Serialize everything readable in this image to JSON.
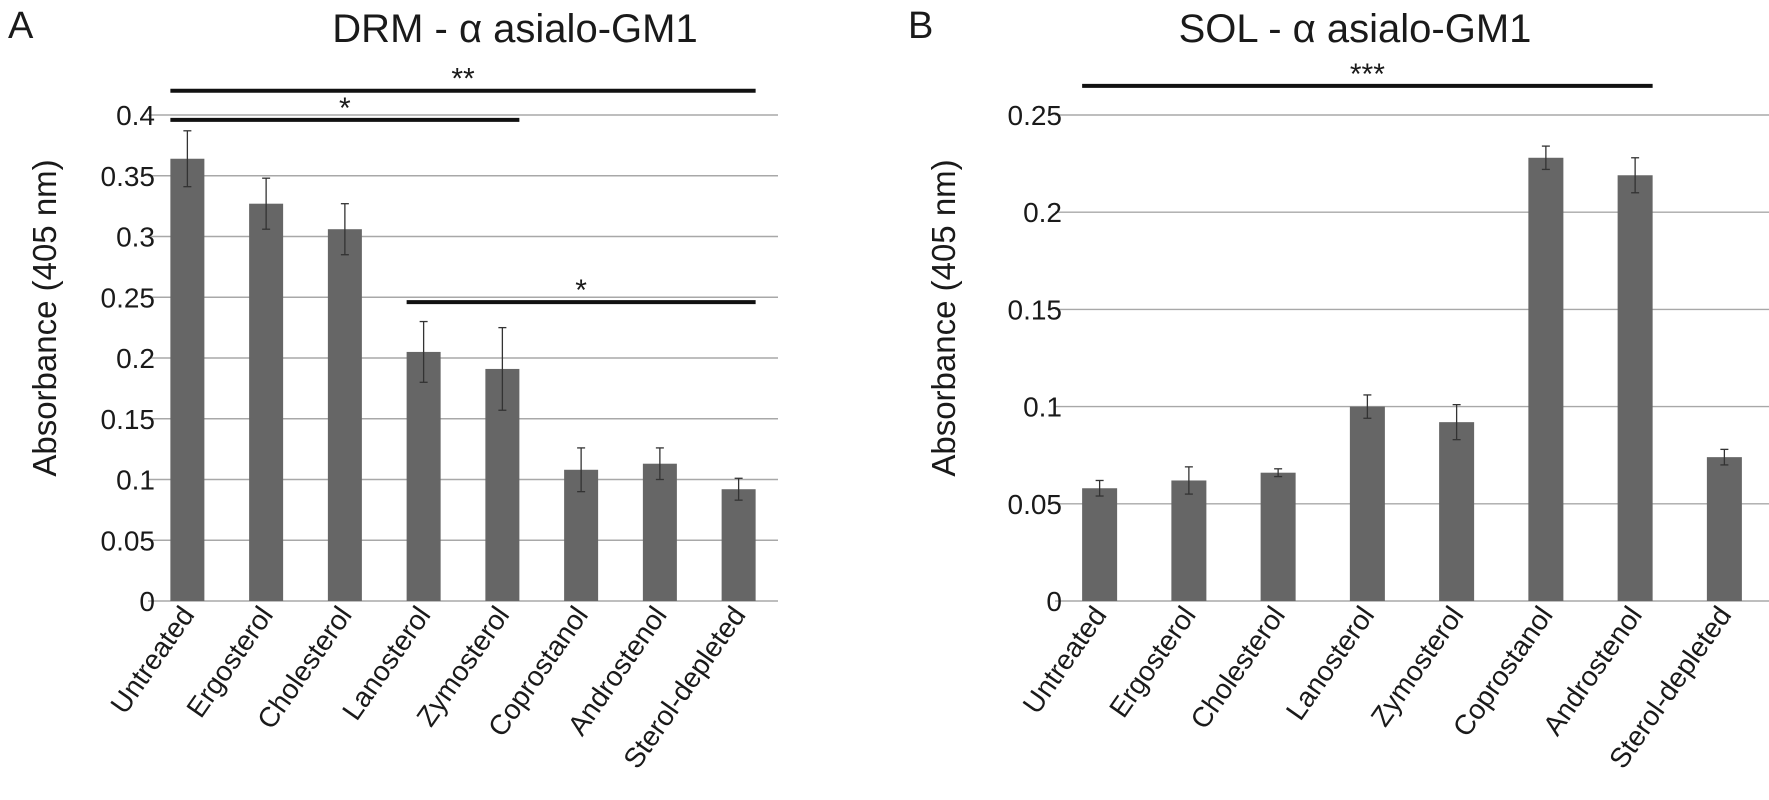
{
  "chart_data": [
    {
      "panel_label": "A",
      "type": "bar",
      "title": "DRM - α asialo-GM1",
      "xlabel": "",
      "ylabel": "Absorbance (405 nm)",
      "ylim": [
        0,
        0.4
      ],
      "yticks": [
        "0",
        "0.05",
        "0.1",
        "0.15",
        "0.2",
        "0.25",
        "0.3",
        "0.35",
        "0.4"
      ],
      "grid": true,
      "categories": [
        "Untreated",
        "Ergosterol",
        "Cholesterol",
        "Lanosterol",
        "Zymosterol",
        "Coprostanol",
        "Androstenol",
        "Sterol-depleted"
      ],
      "values": [
        0.364,
        0.327,
        0.306,
        0.205,
        0.191,
        0.108,
        0.113,
        0.092
      ],
      "errors": [
        0.023,
        0.021,
        0.021,
        0.025,
        0.034,
        0.018,
        0.013,
        0.009
      ],
      "bar_color": "#666666",
      "significance": [
        {
          "label": "**",
          "from": "Untreated",
          "to": "Sterol-depleted",
          "level": 0.42
        },
        {
          "label": "*",
          "from": "Untreated",
          "to": "Zymosterol",
          "level": 0.396
        },
        {
          "label": "*",
          "from": "Lanosterol",
          "to": "Sterol-depleted",
          "level": 0.246
        }
      ]
    },
    {
      "panel_label": "B",
      "type": "bar",
      "title": "SOL - α asialo-GM1",
      "xlabel": "",
      "ylabel": "Absorbance (405 nm)",
      "ylim": [
        0,
        0.25
      ],
      "yticks": [
        "0",
        "0.05",
        "0.1",
        "0.15",
        "0.2",
        "0.25"
      ],
      "grid": true,
      "categories": [
        "Untreated",
        "Ergosterol",
        "Cholesterol",
        "Lanosterol",
        "Zymosterol",
        "Coprostanol",
        "Androstenol",
        "Sterol-depleted"
      ],
      "values": [
        0.058,
        0.062,
        0.066,
        0.1,
        0.092,
        0.228,
        0.219,
        0.074
      ],
      "errors": [
        0.004,
        0.007,
        0.002,
        0.006,
        0.009,
        0.006,
        0.009,
        0.004
      ],
      "bar_color": "#666666",
      "significance": [
        {
          "label": "***",
          "from": "Untreated",
          "to": "Androstenol",
          "level": 0.265
        }
      ]
    }
  ]
}
